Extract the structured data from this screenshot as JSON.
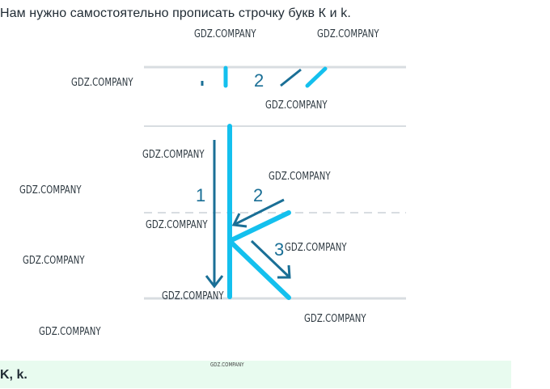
{
  "task_text": "Нам нужно самостоятельно прописать строчку букв К и k.",
  "watermark": "GDZ.COMPANY",
  "step_labels": [
    "1",
    "2",
    "3"
  ],
  "small_step_label": "2",
  "answer_text": "K, k.",
  "colors": {
    "stroke_light": "#14c0ee",
    "stroke_dark": "#1a6f96",
    "guide_line": "#d8dde1",
    "answer_bg": "#e8fbef"
  }
}
